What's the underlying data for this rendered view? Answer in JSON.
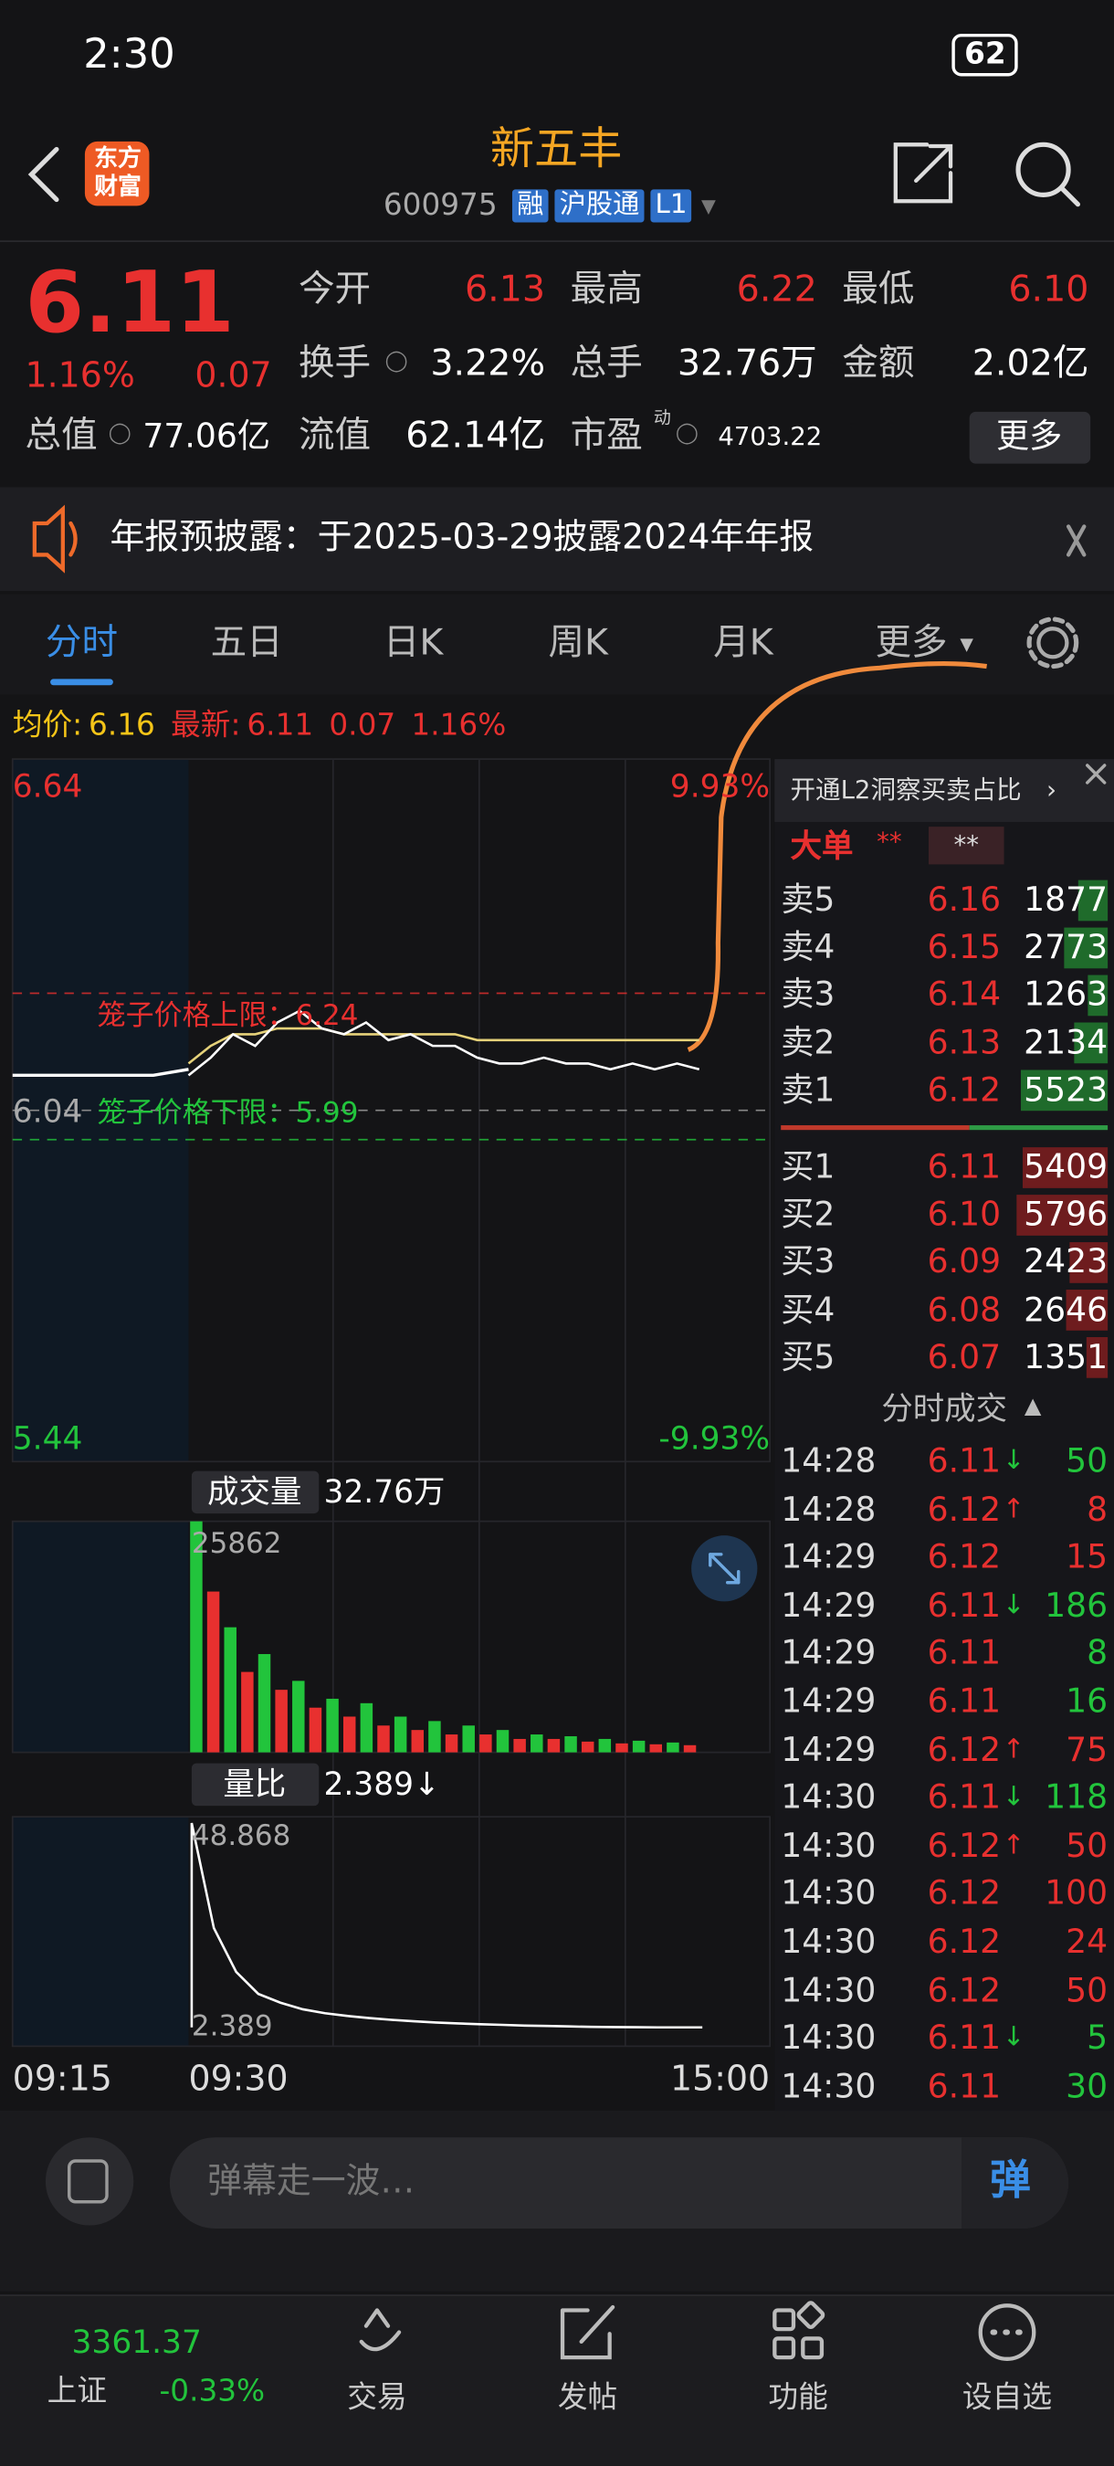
{
  "status_bar": {
    "time": "2:30",
    "battery": "62"
  },
  "header": {
    "logo": [
      "东方",
      "财富"
    ],
    "title": "新五丰",
    "code": "600975",
    "tags": [
      "融",
      "沪股通",
      "L1"
    ]
  },
  "quote": {
    "price": "6.11",
    "change_pct": "1.16%",
    "change": "0.07",
    "stats": [
      {
        "label": "今开",
        "value": "6.13"
      },
      {
        "label": "最高",
        "value": "6.22"
      },
      {
        "label": "最低",
        "value": "6.10"
      },
      {
        "label": "换手",
        "value": "3.22%"
      },
      {
        "label": "总手",
        "value": "32.76万"
      },
      {
        "label": "金额",
        "value": "2.02亿"
      },
      {
        "label": "总值",
        "value": "77.06亿"
      },
      {
        "label": "流值",
        "value": "62.14亿"
      },
      {
        "label": "市盈",
        "value": "4703.22",
        "sup": "动"
      }
    ],
    "more": "更多"
  },
  "notice": "年报预披露：于2025-03-29披露2024年年报",
  "tabs": [
    "分时",
    "五日",
    "日K",
    "周K",
    "月K",
    "更多"
  ],
  "summary": {
    "avg_label": "均价:",
    "avg": "6.16",
    "last_label": "最新:",
    "last": "6.11",
    "change": "0.07",
    "change_pct": "1.16%"
  },
  "chart": {
    "ylim": [
      5.44,
      6.64
    ],
    "yticks": [
      6.64,
      6.04,
      5.44
    ],
    "pct_labels": [
      "9.93%",
      "-9.93%"
    ],
    "cage_upper": {
      "label": "笼子价格上限：6.24",
      "value": 6.24
    },
    "cage_lower": {
      "label": "笼子价格下限：5.99",
      "value": 5.99
    },
    "pre_values": [
      6.1,
      6.1,
      6.1,
      6.1,
      6.1,
      6.11
    ],
    "price_values": [
      6.1,
      6.13,
      6.17,
      6.15,
      6.19,
      6.21,
      6.18,
      6.17,
      6.19,
      6.16,
      6.17,
      6.15,
      6.15,
      6.13,
      6.12,
      6.12,
      6.13,
      6.12,
      6.12,
      6.11,
      6.12,
      6.11,
      6.12,
      6.11
    ],
    "avg_values": [
      6.12,
      6.15,
      6.17,
      6.17,
      6.18,
      6.18,
      6.18,
      6.17,
      6.17,
      6.17,
      6.17,
      6.17,
      6.17,
      6.16,
      6.16,
      6.16,
      6.16,
      6.16,
      6.16,
      6.16,
      6.16,
      6.16,
      6.16,
      6.16
    ],
    "volume_label": "成交量",
    "volume_total": "32.76万",
    "volume_max": 25862,
    "volume_values": [
      25862,
      18000,
      14000,
      9000,
      11000,
      7000,
      8000,
      5000,
      6000,
      4000,
      5500,
      3000,
      4000,
      2500,
      3500,
      2000,
      3000,
      2000,
      2500,
      1500,
      2000,
      1500,
      1800,
      1200,
      1500,
      1000,
      1300,
      900,
      1100,
      800
    ],
    "ratio_label": "量比",
    "ratio_current": "2.389↓",
    "ratio_max": 48.868,
    "ratio_min": 2.389,
    "ratio_values": [
      48.868,
      25,
      15,
      10,
      8,
      6.5,
      5.6,
      5,
      4.5,
      4.1,
      3.8,
      3.5,
      3.3,
      3.1,
      2.95,
      2.8,
      2.7,
      2.6,
      2.5,
      2.45,
      2.42,
      2.4,
      2.39,
      2.389
    ],
    "times": [
      "09:15",
      "09:30",
      "15:00"
    ]
  },
  "panel": {
    "promo": "开通L2洞察买卖占比",
    "big_order": {
      "label": "大单",
      "values": [
        "**",
        "**"
      ]
    },
    "asks": [
      {
        "label": "卖5",
        "price": "6.16",
        "volume": 1877
      },
      {
        "label": "卖4",
        "price": "6.15",
        "volume": 2773
      },
      {
        "label": "卖3",
        "price": "6.14",
        "volume": 1263
      },
      {
        "label": "卖2",
        "price": "6.13",
        "volume": 2134
      },
      {
        "label": "卖1",
        "price": "6.12",
        "volume": 5523
      }
    ],
    "bids": [
      {
        "label": "买1",
        "price": "6.11",
        "volume": 5409
      },
      {
        "label": "买2",
        "price": "6.10",
        "volume": 5796
      },
      {
        "label": "买3",
        "price": "6.09",
        "volume": 2423
      },
      {
        "label": "买4",
        "price": "6.08",
        "volume": 2646
      },
      {
        "label": "买5",
        "price": "6.07",
        "volume": 1351
      }
    ],
    "trades_title": "分时成交",
    "trades": [
      {
        "time": "14:28",
        "price": "6.11",
        "dir": "↓",
        "volume": 50,
        "color": "#22c43c"
      },
      {
        "time": "14:28",
        "price": "6.12",
        "dir": "↑",
        "volume": 8,
        "color": "#e8302f"
      },
      {
        "time": "14:29",
        "price": "6.12",
        "volume": 15,
        "color": "#e8302f"
      },
      {
        "time": "14:29",
        "price": "6.11",
        "dir": "↓",
        "volume": 186,
        "color": "#22c43c"
      },
      {
        "time": "14:29",
        "price": "6.11",
        "volume": 8,
        "color": "#22c43c"
      },
      {
        "time": "14:29",
        "price": "6.11",
        "volume": 16,
        "color": "#22c43c"
      },
      {
        "time": "14:29",
        "price": "6.12",
        "dir": "↑",
        "volume": 75,
        "color": "#e8302f"
      },
      {
        "time": "14:30",
        "price": "6.11",
        "dir": "↓",
        "volume": 118,
        "color": "#22c43c"
      },
      {
        "time": "14:30",
        "price": "6.12",
        "dir": "↑",
        "volume": 50,
        "color": "#e8302f"
      },
      {
        "time": "14:30",
        "price": "6.12",
        "volume": 100,
        "color": "#e8302f"
      },
      {
        "time": "14:30",
        "price": "6.12",
        "volume": 24,
        "color": "#e8302f"
      },
      {
        "time": "14:30",
        "price": "6.12",
        "volume": 50,
        "color": "#e8302f"
      },
      {
        "time": "14:30",
        "price": "6.11",
        "dir": "↓",
        "volume": 5,
        "color": "#22c43c"
      },
      {
        "time": "14:30",
        "price": "6.11",
        "volume": 30,
        "color": "#22c43c"
      }
    ]
  },
  "comment": {
    "placeholder": "弹幕走一波…",
    "button": "弹"
  },
  "bottom_nav": {
    "index_value": "3361.37",
    "index_name": "上证",
    "index_change": "-0.33%",
    "items": [
      "交易",
      "发帖",
      "功能",
      "设自选"
    ]
  }
}
